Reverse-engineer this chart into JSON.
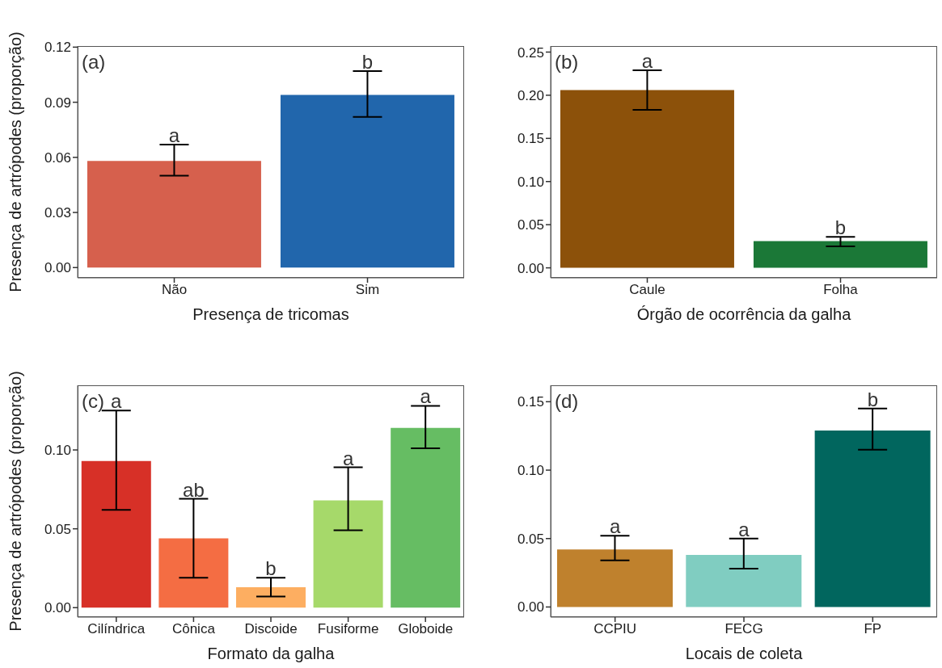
{
  "chart_data": [
    {
      "type": "bar",
      "categories": [
        "Não",
        "Sim"
      ],
      "values": [
        0.058,
        0.094
      ],
      "colors": [
        "#d6604d",
        "#2166ac"
      ],
      "errors": [
        [
          0.05,
          0.067
        ],
        [
          0.082,
          0.107
        ]
      ],
      "ylim": [
        -0.0056,
        0.1206
      ],
      "yticks": [
        {
          "value": 0,
          "label": "0.00"
        },
        {
          "value": 0.03,
          "label": "0.03"
        },
        {
          "value": 0.06,
          "label": "0.06"
        },
        {
          "value": 0.09,
          "label": "0.09"
        },
        {
          "value": 0.12,
          "label": "0.12"
        }
      ],
      "ylabel": "Presença de artrópodes (proporção)",
      "xlabel": "Presença de tricomas",
      "annotations": [
        "(a)",
        {
          "text": "a",
          "x": "Não",
          "y": 0.067
        },
        {
          "text": "b",
          "x": "Sim",
          "y": 0.107
        }
      ]
    },
    {
      "type": "bar",
      "categories": [
        "Caule",
        "Folha"
      ],
      "values": [
        0.206,
        0.031
      ],
      "colors": [
        "#8c510a",
        "#1b7837"
      ],
      "errors": [
        [
          0.183,
          0.229
        ],
        [
          0.025,
          0.036
        ]
      ],
      "ylim": [
        -0.0116,
        0.257
      ],
      "yticks": [
        {
          "value": 0,
          "label": "0.00"
        },
        {
          "value": 0.05,
          "label": "0.05"
        },
        {
          "value": 0.1,
          "label": "0.10"
        },
        {
          "value": 0.15,
          "label": "0.15"
        },
        {
          "value": 0.2,
          "label": "0.20"
        },
        {
          "value": 0.25,
          "label": "0.25"
        }
      ],
      "xlabel": "Órgão de ocorrência da galha",
      "annotations": [
        "(b)",
        {
          "text": "a",
          "x": "Caule",
          "y": 0.229
        },
        {
          "text": "b",
          "x": "Folha",
          "y": 0.036
        }
      ]
    },
    {
      "type": "bar",
      "categories": [
        "Cilíndrica",
        "Cônica",
        "Discoide",
        "Fusiforme",
        "Globoide"
      ],
      "values": [
        0.093,
        0.044,
        0.013,
        0.068,
        0.114
      ],
      "colors": [
        "#d73027",
        "#f46d43",
        "#fdae61",
        "#a6d96a",
        "#66bd63"
      ],
      "errors": [
        [
          0.062,
          0.125
        ],
        [
          0.019,
          0.069
        ],
        [
          0.007,
          0.019
        ],
        [
          0.049,
          0.089
        ],
        [
          0.101,
          0.128
        ]
      ],
      "ylim": [
        -0.006,
        0.141
      ],
      "yticks": [
        {
          "value": 0,
          "label": "0.00"
        },
        {
          "value": 0.05,
          "label": "0.05"
        },
        {
          "value": 0.1,
          "label": "0.10"
        }
      ],
      "ylabel": "Presença de artrópodes (proporção)",
      "xlabel": "Formato da galha",
      "annotations": [
        "(c)",
        {
          "text": "a",
          "x": "Cilíndrica",
          "y": 0.125
        },
        {
          "text": "ab",
          "x": "Cônica",
          "y": 0.069
        },
        {
          "text": "b",
          "x": "Discoide",
          "y": 0.019
        },
        {
          "text": "a",
          "x": "Fusiforme",
          "y": 0.089
        },
        {
          "text": "a",
          "x": "Globoide",
          "y": 0.128
        }
      ]
    },
    {
      "type": "bar",
      "categories": [
        "CCPIU",
        "FECG",
        "FP"
      ],
      "values": [
        0.042,
        0.038,
        0.129
      ],
      "colors": [
        "#bf812d",
        "#80cdc1",
        "#01665e"
      ],
      "errors": [
        [
          0.034,
          0.052
        ],
        [
          0.028,
          0.05
        ],
        [
          0.115,
          0.145
        ]
      ],
      "ylim": [
        -0.0074,
        0.162
      ],
      "yticks": [
        {
          "value": 0,
          "label": "0.00"
        },
        {
          "value": 0.05,
          "label": "0.05"
        },
        {
          "value": 0.1,
          "label": "0.10"
        },
        {
          "value": 0.15,
          "label": "0.15"
        }
      ],
      "xlabel": "Locais de coleta",
      "annotations": [
        "(d)",
        {
          "text": "a",
          "x": "CCPIU",
          "y": 0.052
        },
        {
          "text": "a",
          "x": "FECG",
          "y": 0.05
        },
        {
          "text": "b",
          "x": "FP",
          "y": 0.145
        }
      ]
    }
  ]
}
